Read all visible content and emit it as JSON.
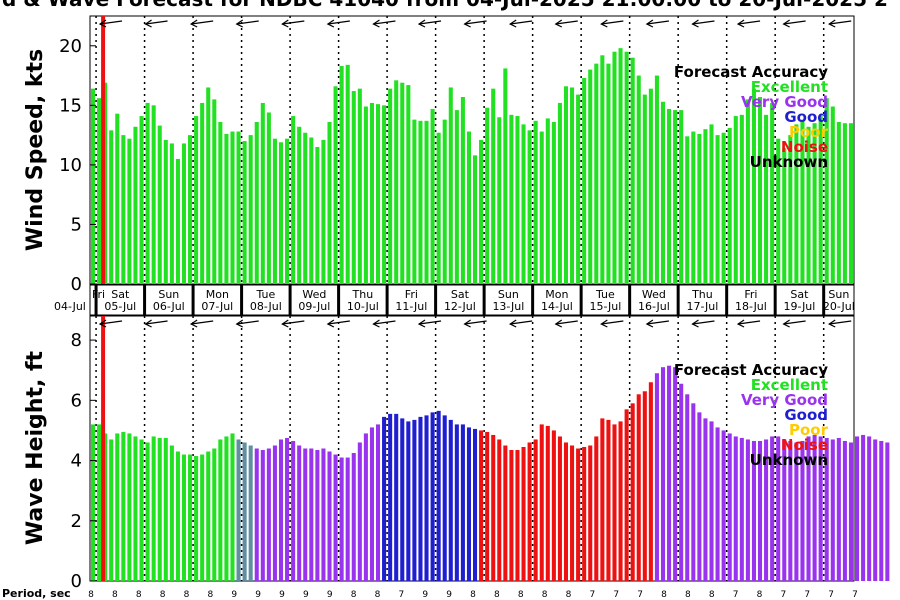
{
  "title": "d & Wave Forecast for NDBC 41040 from 04-Jul-2025 21:00:00 to 20-Jul-2025 2",
  "colors": {
    "excellent": "#22e022",
    "very_good": "#9933ee",
    "good": "#1f1fd0",
    "poor": "#ffcc00",
    "noise": "#ee1111",
    "unknown": "#000000",
    "now_line": "#ee1111"
  },
  "legend": {
    "title": "Forecast Accuracy",
    "entries": [
      {
        "label": "Excellent",
        "key": "excellent"
      },
      {
        "label": "Very Good",
        "key": "very_good"
      },
      {
        "label": "Good",
        "key": "good"
      },
      {
        "label": "Poor",
        "key": "poor"
      },
      {
        "label": "Noise",
        "key": "noise"
      },
      {
        "label": "Unknown",
        "key": "unknown"
      }
    ]
  },
  "days": [
    {
      "dow": "Fri",
      "date": "04-Jul"
    },
    {
      "dow": "Sat",
      "date": "05-Jul"
    },
    {
      "dow": "Sun",
      "date": "06-Jul"
    },
    {
      "dow": "Mon",
      "date": "07-Jul"
    },
    {
      "dow": "Tue",
      "date": "08-Jul"
    },
    {
      "dow": "Wed",
      "date": "09-Jul"
    },
    {
      "dow": "Thu",
      "date": "10-Jul"
    },
    {
      "dow": "Fri",
      "date": "11-Jul"
    },
    {
      "dow": "Sat",
      "date": "12-Jul"
    },
    {
      "dow": "Sun",
      "date": "13-Jul"
    },
    {
      "dow": "Mon",
      "date": "14-Jul"
    },
    {
      "dow": "Tue",
      "date": "15-Jul"
    },
    {
      "dow": "Wed",
      "date": "16-Jul"
    },
    {
      "dow": "Thu",
      "date": "17-Jul"
    },
    {
      "dow": "Fri",
      "date": "18-Jul"
    },
    {
      "dow": "Sat",
      "date": "19-Jul"
    },
    {
      "dow": "Sun",
      "date": "20-Jul"
    }
  ],
  "period_label": "Period, sec",
  "periods": [
    8,
    8,
    8,
    8,
    8,
    8,
    9,
    9,
    9,
    9,
    9,
    8,
    8,
    7,
    9,
    9,
    8,
    8,
    8,
    8,
    8,
    7,
    7,
    7,
    8,
    8,
    8,
    7,
    8,
    7,
    7,
    7,
    7
  ],
  "chart_data": [
    {
      "type": "bar",
      "name": "wind",
      "ylabel": "Wind Speed, kts",
      "ylim": [
        0,
        22.5
      ],
      "yticks": [
        0,
        5,
        10,
        15,
        20
      ],
      "x_start": "04-Jul 21:00",
      "x_step_hours": 3,
      "grid": "dotted day separators",
      "legend_position": "top-right",
      "values": [
        16.4,
        15.6,
        16.9,
        12.9,
        14.3,
        12.5,
        12.2,
        13.2,
        14.1,
        15.2,
        15.0,
        13.3,
        12.1,
        11.8,
        10.5,
        11.8,
        12.5,
        14.1,
        15.2,
        16.5,
        15.5,
        13.6,
        12.6,
        12.8,
        12.8,
        12.0,
        12.5,
        13.6,
        15.2,
        14.4,
        12.2,
        11.9,
        12.2,
        14.1,
        13.2,
        12.7,
        12.3,
        11.5,
        12.1,
        13.6,
        16.6,
        18.3,
        18.4,
        16.2,
        16.4,
        14.9,
        15.2,
        15.1,
        15.0,
        16.4,
        17.1,
        16.9,
        16.7,
        13.8,
        13.7,
        13.7,
        14.7,
        12.7,
        13.8,
        16.5,
        14.6,
        15.7,
        12.8,
        10.8,
        12.1,
        14.8,
        16.4,
        14.0,
        18.1,
        14.2,
        14.1,
        13.4,
        12.9,
        13.7,
        12.8,
        13.9,
        13.6,
        15.2,
        16.6,
        16.5,
        15.9,
        17.3,
        18.0,
        18.5,
        19.2,
        18.5,
        19.5,
        19.8,
        19.5,
        19.0,
        17.5,
        15.9,
        16.4,
        17.5,
        15.3,
        14.7,
        14.6,
        14.6,
        12.4,
        12.8,
        12.6,
        13.0,
        13.4,
        12.5,
        12.7,
        13.1,
        14.1,
        14.2,
        15.5,
        16.4,
        15.7,
        14.2,
        15.2,
        12.2,
        11.4,
        12.5,
        13.4,
        13.8,
        13.2,
        13.5,
        14.1,
        15.6,
        14.9,
        13.6,
        13.5,
        13.5
      ],
      "accuracy": "excellent"
    },
    {
      "type": "bar",
      "name": "wave",
      "ylabel": "Wave Height, ft",
      "ylim": [
        0,
        8.8
      ],
      "yticks": [
        0,
        2,
        4,
        6,
        8
      ],
      "x_start": "04-Jul 21:00",
      "x_step_hours": 3,
      "grid": "dotted day separators",
      "legend_position": "top-right",
      "values": [
        5.2,
        5.2,
        4.9,
        4.7,
        4.9,
        4.95,
        4.9,
        4.8,
        4.7,
        4.6,
        4.8,
        4.75,
        4.75,
        4.5,
        4.3,
        4.2,
        4.2,
        4.15,
        4.2,
        4.3,
        4.4,
        4.7,
        4.8,
        4.9,
        4.7,
        4.6,
        4.5,
        4.4,
        4.35,
        4.4,
        4.5,
        4.7,
        4.75,
        4.65,
        4.5,
        4.4,
        4.4,
        4.35,
        4.4,
        4.3,
        4.2,
        4.1,
        4.1,
        4.25,
        4.6,
        4.9,
        5.1,
        5.2,
        5.45,
        5.55,
        5.55,
        5.4,
        5.3,
        5.35,
        5.45,
        5.5,
        5.6,
        5.65,
        5.5,
        5.35,
        5.2,
        5.2,
        5.1,
        5.05,
        5.0,
        4.95,
        4.85,
        4.7,
        4.5,
        4.35,
        4.35,
        4.45,
        4.6,
        4.7,
        5.2,
        5.15,
        5.0,
        4.8,
        4.6,
        4.5,
        4.4,
        4.45,
        4.5,
        4.8,
        5.4,
        5.35,
        5.2,
        5.3,
        5.7,
        5.9,
        6.2,
        6.3,
        6.6,
        6.9,
        7.1,
        7.15,
        7.1,
        6.55,
        6.2,
        5.9,
        5.6,
        5.4,
        5.3,
        5.1,
        5.0,
        4.9,
        4.8,
        4.75,
        4.7,
        4.65,
        4.65,
        4.7,
        4.8,
        4.8,
        4.7,
        4.65,
        4.6,
        4.65,
        4.8,
        4.85,
        4.8,
        4.75,
        4.7,
        4.75,
        4.65,
        4.6,
        4.8,
        4.85,
        4.8,
        4.7,
        4.65,
        4.6
      ],
      "accuracy_segments": [
        {
          "from": 0,
          "to": 2,
          "key": "excellent"
        },
        {
          "from": 2,
          "to": 17,
          "key": "excellent"
        },
        {
          "from": 17,
          "to": 24,
          "key": "excellent"
        },
        {
          "from": 24,
          "to": 27,
          "key": "mixed"
        },
        {
          "from": 27,
          "to": 48,
          "key": "very_good"
        },
        {
          "from": 48,
          "to": 64,
          "key": "good"
        },
        {
          "from": 64,
          "to": 93,
          "key": "noise"
        },
        {
          "from": 93,
          "to": 135,
          "key": "very_good"
        }
      ]
    }
  ]
}
